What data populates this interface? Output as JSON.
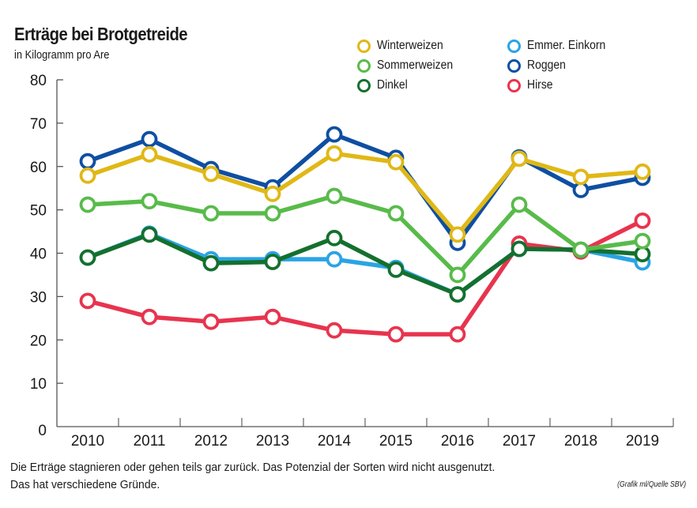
{
  "header": {
    "title": "Erträge bei Brotgetreide",
    "subtitle": "in Kilogramm pro Are"
  },
  "footer": {
    "caption_line1": "Die Erträge stagnieren oder gehen teils gar zurück. Das Potenzial der Sorten wird nicht ausgenutzt.",
    "caption_line2": "Das hat verschiedene Gründe.",
    "source": "(Grafik ml/Quelle SBV)"
  },
  "chart_data": {
    "type": "line",
    "title": "Erträge bei Brotgetreide",
    "subtitle": "in Kilogramm pro Are",
    "xlabel": "",
    "ylabel": "in Kilogramm pro Are",
    "categories": [
      "2010",
      "2011",
      "2012",
      "2013",
      "2014",
      "2015",
      "2016",
      "2017",
      "2018",
      "2019"
    ],
    "ylim": [
      0,
      80
    ],
    "yticks": [
      "0",
      "10",
      "20",
      "30",
      "40",
      "50",
      "60",
      "70",
      "80"
    ],
    "grid": false,
    "legend_position": "top-right",
    "series": [
      {
        "name": "Hirse",
        "color": "#e8344e",
        "values": [
          29.0,
          25.3,
          24.2,
          25.3,
          22.2,
          21.3,
          21.3,
          42.2,
          40.4,
          47.5
        ]
      },
      {
        "name": "Emmer. Einkorn",
        "color": "#2aa4e4",
        "values": [
          39.0,
          44.5,
          38.6,
          38.6,
          38.6,
          36.6,
          30.5,
          41.0,
          40.8,
          37.9
        ]
      },
      {
        "name": "Dinkel",
        "color": "#14702e",
        "values": [
          39.0,
          44.3,
          37.7,
          38.0,
          43.5,
          36.2,
          30.5,
          41.0,
          40.8,
          39.8
        ]
      },
      {
        "name": "Sommerweizen",
        "color": "#58bb4a",
        "values": [
          51.2,
          52.0,
          49.2,
          49.2,
          53.2,
          49.2,
          35.0,
          51.2,
          40.8,
          42.8
        ]
      },
      {
        "name": "Roggen",
        "color": "#0e4fa2",
        "values": [
          61.2,
          66.3,
          59.4,
          55.2,
          67.4,
          62.0,
          42.4,
          62.1,
          54.6,
          57.4
        ]
      },
      {
        "name": "Winterweizen",
        "color": "#e0b816",
        "values": [
          57.9,
          62.8,
          58.3,
          53.7,
          63.0,
          61.0,
          44.3,
          61.8,
          57.6,
          58.8
        ]
      }
    ],
    "legend": [
      {
        "name": "Winterweizen",
        "color": "#e0b816"
      },
      {
        "name": "Sommerweizen",
        "color": "#58bb4a"
      },
      {
        "name": "Dinkel",
        "color": "#14702e"
      },
      {
        "name": "Emmer. Einkorn",
        "color": "#2aa4e4"
      },
      {
        "name": "Roggen",
        "color": "#0e4fa2"
      },
      {
        "name": "Hirse",
        "color": "#e8344e"
      }
    ]
  }
}
